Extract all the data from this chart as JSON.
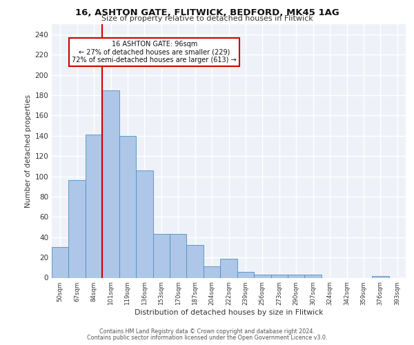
{
  "title1": "16, ASHTON GATE, FLITWICK, BEDFORD, MK45 1AG",
  "title2": "Size of property relative to detached houses in Flitwick",
  "xlabel": "Distribution of detached houses by size in Flitwick",
  "ylabel": "Number of detached properties",
  "footer1": "Contains HM Land Registry data © Crown copyright and database right 2024.",
  "footer2": "Contains public sector information licensed under the Open Government Licence v3.0.",
  "annotation_line1": "16 ASHTON GATE: 96sqm",
  "annotation_line2": "← 27% of detached houses are smaller (229)",
  "annotation_line3": "72% of semi-detached houses are larger (613) →",
  "bar_labels": [
    "50sqm",
    "67sqm",
    "84sqm",
    "101sqm",
    "119sqm",
    "136sqm",
    "153sqm",
    "170sqm",
    "187sqm",
    "204sqm",
    "222sqm",
    "239sqm",
    "256sqm",
    "273sqm",
    "290sqm",
    "307sqm",
    "324sqm",
    "342sqm",
    "359sqm",
    "376sqm",
    "393sqm"
  ],
  "bar_values": [
    30,
    96,
    141,
    185,
    140,
    106,
    43,
    43,
    32,
    11,
    19,
    6,
    3,
    3,
    3,
    3,
    0,
    0,
    0,
    2,
    0
  ],
  "bar_color": "#aec6e8",
  "bar_edge_color": "#4a90c4",
  "redline_index": 3,
  "ylim": [
    0,
    250
  ],
  "yticks": [
    0,
    20,
    40,
    60,
    80,
    100,
    120,
    140,
    160,
    180,
    200,
    220,
    240
  ],
  "bg_color": "#eef2f8",
  "grid_color": "#ffffff",
  "annotation_box_color": "#ffffff",
  "annotation_box_edge": "#cc0000",
  "redline_color": "#cc0000",
  "fig_width": 6.0,
  "fig_height": 5.0,
  "dpi": 100
}
